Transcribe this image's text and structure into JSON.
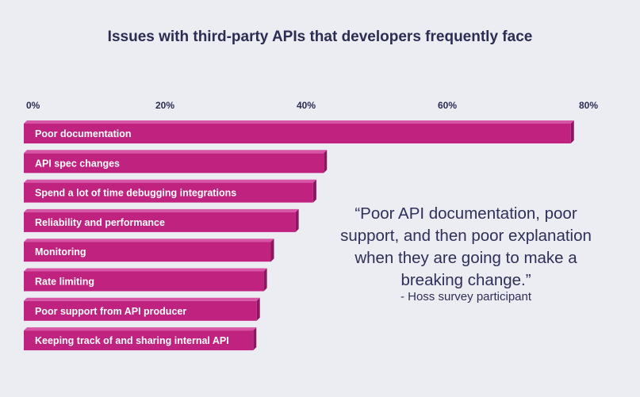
{
  "chart_data": {
    "type": "bar",
    "orientation": "horizontal",
    "title": "Issues with third-party APIs that developers frequently face",
    "xlim": [
      0,
      80
    ],
    "ticks": [
      0,
      20,
      40,
      60,
      80
    ],
    "tick_labels": [
      "0%",
      "20%",
      "40%",
      "60%",
      "80%"
    ],
    "categories": [
      "Poor documentation",
      "API spec changes",
      "Spend a lot of time debugging integrations",
      "Reliability and performance",
      "Monitoring",
      "Rate limiting",
      "Poor support from API producer",
      "Keeping track of and sharing internal API"
    ],
    "values": [
      77.5,
      42.5,
      41,
      38.5,
      35,
      34,
      33,
      32.5
    ],
    "bar_color": "#c0237f",
    "bar_top_color": "#d855a5",
    "bar_side_color": "#8c1760"
  },
  "quote": {
    "text": "“Poor API documentation, poor support, and then poor explanation when they are going to make a breaking change.”",
    "attribution": "- Hoss survey participant"
  }
}
